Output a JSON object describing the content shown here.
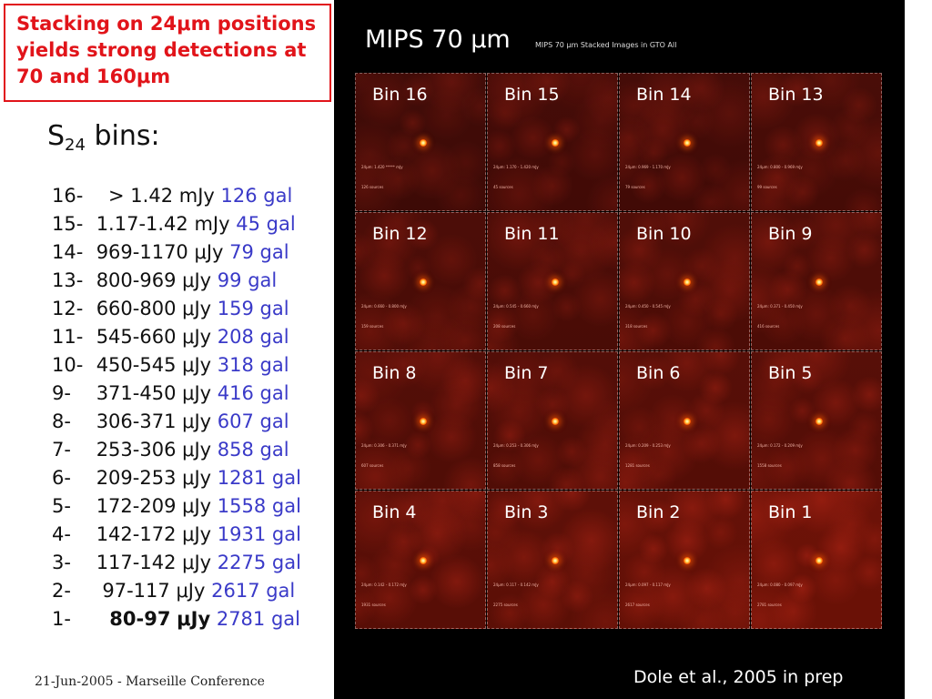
{
  "callout": {
    "lines": [
      "Stacking on 24μm positions",
      "yields strong detections at",
      "70 and 160μm"
    ]
  },
  "heading": {
    "main": "S",
    "sub": "24",
    "rest": " bins:"
  },
  "bins": [
    {
      "num": "16-",
      "range": "  > 1.42",
      "unit": "mJy",
      "gal": "126 gal",
      "bold": false
    },
    {
      "num": "15-",
      "range": "1.17-1.42",
      "unit": "mJy",
      "gal": "45 gal",
      "bold": false
    },
    {
      "num": "14-",
      "range": "969-1170",
      "unit": "μJy",
      "gal": "79 gal",
      "bold": false
    },
    {
      "num": "13-",
      "range": "800-969",
      "unit": "μJy",
      "gal": "99 gal",
      "bold": false
    },
    {
      "num": "12-",
      "range": "660-800",
      "unit": "μJy",
      "gal": "159 gal",
      "bold": false
    },
    {
      "num": "11-",
      "range": "545-660",
      "unit": "μJy",
      "gal": "208 gal",
      "bold": false
    },
    {
      "num": "10-",
      "range": "450-545",
      "unit": "μJy",
      "gal": "318 gal",
      "bold": false
    },
    {
      "num": "9-",
      "range": "371-450",
      "unit": "μJy",
      "gal": "416 gal",
      "bold": false
    },
    {
      "num": "8-",
      "range": "306-371",
      "unit": "μJy",
      "gal": "607 gal",
      "bold": false
    },
    {
      "num": "7-",
      "range": "253-306",
      "unit": "μJy",
      "gal": "858 gal",
      "bold": false
    },
    {
      "num": "6-",
      "range": "209-253",
      "unit": "μJy",
      "gal": "1281 gal",
      "bold": false
    },
    {
      "num": "5-",
      "range": "172-209",
      "unit": "μJy",
      "gal": "1558 gal",
      "bold": false
    },
    {
      "num": "4-",
      "range": "142-172",
      "unit": "μJy",
      "gal": "1931 gal",
      "bold": false
    },
    {
      "num": "3-",
      "range": "117-142",
      "unit": "μJy",
      "gal": "2275 gal",
      "bold": false
    },
    {
      "num": "2-",
      "range": " 97-117",
      "unit": "μJy",
      "gal": "2617 gal",
      "bold": false
    },
    {
      "num": "1-",
      "range": "  80-97",
      "unit": "μJy",
      "gal": "2781 gal",
      "bold": true
    }
  ],
  "footer_date": "21-Jun-2005 - Marseille Conference",
  "panel": {
    "title": "MIPS 70 μm",
    "subtitle": "MIPS 70 μm Stacked Images in GTO All",
    "credit": "Dole et al., 2005 in prep",
    "tiles": [
      {
        "label": "Bin 16",
        "range_text": "24μm: 1.420 ***** mJy",
        "count_text": "126 sources",
        "noise": 0.15
      },
      {
        "label": "Bin 15",
        "range_text": "24μm: 1.170 - 1.420 mJy",
        "count_text": "45 sources",
        "noise": 0.2
      },
      {
        "label": "Bin 14",
        "range_text": "24μm: 0.969 - 1.170 mJy",
        "count_text": "79 sources",
        "noise": 0.2
      },
      {
        "label": "Bin 13",
        "range_text": "24μm: 0.800 - 0.969 mJy",
        "count_text": "99 sources",
        "noise": 0.25
      },
      {
        "label": "Bin 12",
        "range_text": "24μm: 0.660 - 0.800 mJy",
        "count_text": "159 sources",
        "noise": 0.3
      },
      {
        "label": "Bin 11",
        "range_text": "24μm: 0.545 - 0.660 mJy",
        "count_text": "208 sources",
        "noise": 0.3
      },
      {
        "label": "Bin 10",
        "range_text": "24μm: 0.450 - 0.545 mJy",
        "count_text": "318 sources",
        "noise": 0.35
      },
      {
        "label": "Bin 9",
        "range_text": "24μm: 0.371 - 0.450 mJy",
        "count_text": "416 sources",
        "noise": 0.35
      },
      {
        "label": "Bin 8",
        "range_text": "24μm: 0.306 - 0.371 mJy",
        "count_text": "607 sources",
        "noise": 0.4
      },
      {
        "label": "Bin 7",
        "range_text": "24μm: 0.253 - 0.306 mJy",
        "count_text": "858 sources",
        "noise": 0.4
      },
      {
        "label": "Bin 6",
        "range_text": "24μm: 0.209 - 0.253 mJy",
        "count_text": "1281 sources",
        "noise": 0.45
      },
      {
        "label": "Bin 5",
        "range_text": "24μm: 0.172 - 0.209 mJy",
        "count_text": "1558 sources",
        "noise": 0.45
      },
      {
        "label": "Bin 4",
        "range_text": "24μm: 0.142 - 0.172 mJy",
        "count_text": "1931 sources",
        "noise": 0.5
      },
      {
        "label": "Bin 3",
        "range_text": "24μm: 0.117 - 0.142 mJy",
        "count_text": "2275 sources",
        "noise": 0.55
      },
      {
        "label": "Bin 2",
        "range_text": "24μm: 0.097 - 0.117 mJy",
        "count_text": "2617 sources",
        "noise": 0.65
      },
      {
        "label": "Bin 1",
        "range_text": "24μm: 0.080 - 0.097 mJy",
        "count_text": "2781 sources",
        "noise": 0.75
      }
    ]
  }
}
